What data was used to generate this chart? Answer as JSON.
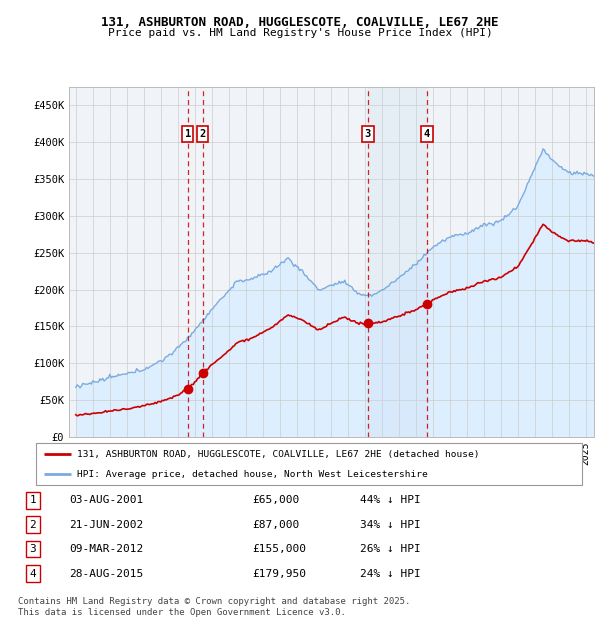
{
  "title_line1": "131, ASHBURTON ROAD, HUGGLESCOTE, COALVILLE, LE67 2HE",
  "title_line2": "Price paid vs. HM Land Registry's House Price Index (HPI)",
  "ylim": [
    0,
    475000
  ],
  "yticks": [
    0,
    50000,
    100000,
    150000,
    200000,
    250000,
    300000,
    350000,
    400000,
    450000
  ],
  "ytick_labels": [
    "£0",
    "£50K",
    "£100K",
    "£150K",
    "£200K",
    "£250K",
    "£300K",
    "£350K",
    "£400K",
    "£450K"
  ],
  "xlim_start": 1994.6,
  "xlim_end": 2025.5,
  "sale_dates": [
    2001.59,
    2002.47,
    2012.19,
    2015.66
  ],
  "sale_prices": [
    65000,
    87000,
    155000,
    179950
  ],
  "sale_labels": [
    "1",
    "2",
    "3",
    "4"
  ],
  "red_line_color": "#cc0000",
  "blue_line_color": "#7aabe0",
  "blue_fill_color": "#ddeeff",
  "marker_color": "#cc0000",
  "vline_color": "#cc0000",
  "legend_label_red": "131, ASHBURTON ROAD, HUGGLESCOTE, COALVILLE, LE67 2HE (detached house)",
  "legend_label_blue": "HPI: Average price, detached house, North West Leicestershire",
  "table_entries": [
    {
      "num": "1",
      "date": "03-AUG-2001",
      "price": "£65,000",
      "pct": "44% ↓ HPI"
    },
    {
      "num": "2",
      "date": "21-JUN-2002",
      "price": "£87,000",
      "pct": "34% ↓ HPI"
    },
    {
      "num": "3",
      "date": "09-MAR-2012",
      "price": "£155,000",
      "pct": "26% ↓ HPI"
    },
    {
      "num": "4",
      "date": "28-AUG-2015",
      "price": "£179,950",
      "pct": "24% ↓ HPI"
    }
  ],
  "footnote": "Contains HM Land Registry data © Crown copyright and database right 2025.\nThis data is licensed under the Open Government Licence v3.0.",
  "background_color": "#ffffff",
  "plot_bg_color": "#f0f4f8"
}
